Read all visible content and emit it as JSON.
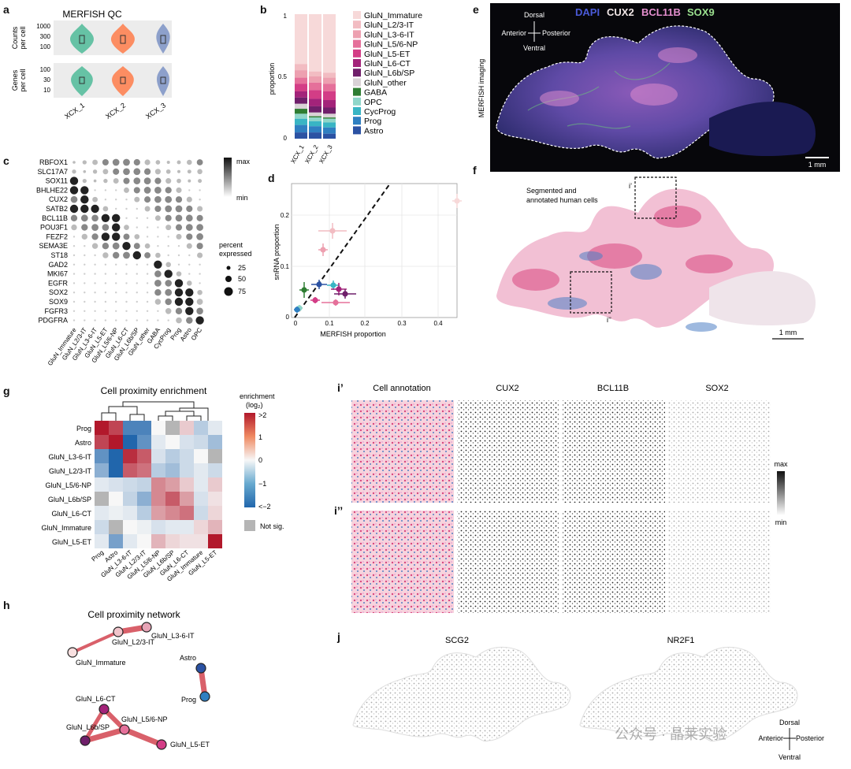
{
  "panels": {
    "a": "a",
    "b": "b",
    "c": "c",
    "d": "d",
    "e": "e",
    "f": "f",
    "g": "g",
    "h": "h",
    "i1": "i’",
    "i2": "i’’",
    "j": "j"
  },
  "panel_a": {
    "title": "MERFISH QC",
    "counts_label": [
      "Counts",
      "per cell"
    ],
    "genes_label": [
      "Genes",
      "per cell"
    ],
    "counts_ticks": [
      "1000",
      "300",
      "100"
    ],
    "genes_ticks": [
      "100",
      "30",
      "10"
    ],
    "samples": [
      "XCX_1",
      "XCX_2",
      "XCX_3"
    ],
    "colors": [
      "#66c2a5",
      "#fc8d62",
      "#8da0cb"
    ]
  },
  "panel_b": {
    "ylabel": "proportion",
    "yticks": [
      "1",
      "0.5",
      "0"
    ],
    "legend": [
      {
        "name": "GluN_Immature",
        "color": "#f7d9d9"
      },
      {
        "name": "GluN_L2/3-IT",
        "color": "#f2bcc2"
      },
      {
        "name": "GluN_L3-6-IT",
        "color": "#eda0b0"
      },
      {
        "name": "GluN_L5/6-NP",
        "color": "#e5709a"
      },
      {
        "name": "GluN_L5-ET",
        "color": "#d33d86"
      },
      {
        "name": "GluN_L6-CT",
        "color": "#a3237a"
      },
      {
        "name": "GluN_L6b/SP",
        "color": "#6f1f6a"
      },
      {
        "name": "GluN_other",
        "color": "#d9d2d6"
      },
      {
        "name": "GABA",
        "color": "#2e7d32"
      },
      {
        "name": "OPC",
        "color": "#8fd6c9"
      },
      {
        "name": "CycProg",
        "color": "#39b5c4"
      },
      {
        "name": "Prog",
        "color": "#2f7fc1"
      },
      {
        "name": "Astro",
        "color": "#2b52a3"
      }
    ]
  },
  "panel_c": {
    "genes": [
      "RBFOX1",
      "SLC17A7",
      "SOX11",
      "BHLHE22",
      "CUX2",
      "SATB2",
      "BCL11B",
      "POU3F1",
      "FEZF2",
      "SEMA3E",
      "ST18",
      "GAD2",
      "MKI67",
      "EGFR",
      "SOX2",
      "SOX9",
      "FGFR3",
      "PDGFRA"
    ],
    "celltypes": [
      "GluN_Immature",
      "GluN_L2/3-IT",
      "GluN_L3-6-IT",
      "GluN_L5-ET",
      "GluN_L5/6-NP",
      "GluN_L6-CT",
      "GluN_L6b/SP",
      "GluN_other",
      "GABA",
      "CycProg",
      "Prog",
      "Astro",
      "OPC"
    ],
    "scale_max": "max",
    "scale_min": "min",
    "size_title": [
      "percent",
      "expressed"
    ],
    "size_values": [
      "25",
      "50",
      "75"
    ]
  },
  "panel_d": {
    "xlabel": "MERFISH proportion",
    "ylabel": "snRNA proportion",
    "xticks": [
      "0",
      "0.1",
      "0.2",
      "0.3",
      "0.4"
    ],
    "yticks": [
      "0",
      "0.1",
      "0.2"
    ]
  },
  "panel_e": {
    "stains": [
      {
        "name": "DAPI",
        "color": "#4a5ad8"
      },
      {
        "name": "CUX2",
        "color": "#f0e6e6"
      },
      {
        "name": "BCL11B",
        "color": "#e58fcf"
      },
      {
        "name": "SOX9",
        "color": "#9be08f"
      }
    ],
    "side_label": "MERFISH imaging",
    "compass": {
      "top": "Dorsal",
      "bottom": "Ventral",
      "left": "Anterior",
      "right": "Posterior"
    },
    "scalebar": "1 mm"
  },
  "panel_f": {
    "caption": [
      "Segmented and",
      "annotated human cells"
    ],
    "box1": "i’",
    "box2": "i’’",
    "scalebar": "1 mm"
  },
  "panel_g": {
    "title": "Cell proximity enrichment",
    "rows": [
      "Prog",
      "Astro",
      "GluN_L3-6-IT",
      "GluN_L2/3-IT",
      "GluN_L5/6-NP",
      "GluN_L6b/SP",
      "GluN_L6-CT",
      "GluN_Immature",
      "GluN_L5-ET"
    ],
    "cols": [
      "Prog",
      "Astro",
      "GluN_L3-6-IT",
      "GluN_L2/3-IT",
      "GluN_L5/6-NP",
      "GluN_L6b/SP",
      "GluN_L6-CT",
      "GluN_Immature",
      "GluN_L5-ET"
    ],
    "legend_title": [
      "enrichment",
      "(log₂)"
    ],
    "legend_ticks": [
      ">2",
      "1",
      "0",
      "−1",
      "<−2"
    ],
    "not_sig": "Not sig."
  },
  "panel_h": {
    "title": "Cell proximity network",
    "nodes": [
      "GluN_L3-6-IT",
      "GluN_L2/3-IT",
      "GluN_Immature",
      "Astro",
      "Prog",
      "GluN_L6-CT",
      "GluN_L6b/SP",
      "GluN_L5/6-NP",
      "GluN_L5-ET"
    ]
  },
  "panel_i": {
    "headers": [
      "Cell annotation",
      "CUX2",
      "BCL11B",
      "SOX2"
    ],
    "scale_max": "max",
    "scale_min": "min"
  },
  "panel_j": {
    "headers": [
      "SCG2",
      "NR2F1"
    ],
    "compass": {
      "top": "Dorsal",
      "bottom": "Ventral",
      "left": "Anterior",
      "right": "Posterior"
    },
    "watermark": "公众号 · 晶莱实验"
  }
}
